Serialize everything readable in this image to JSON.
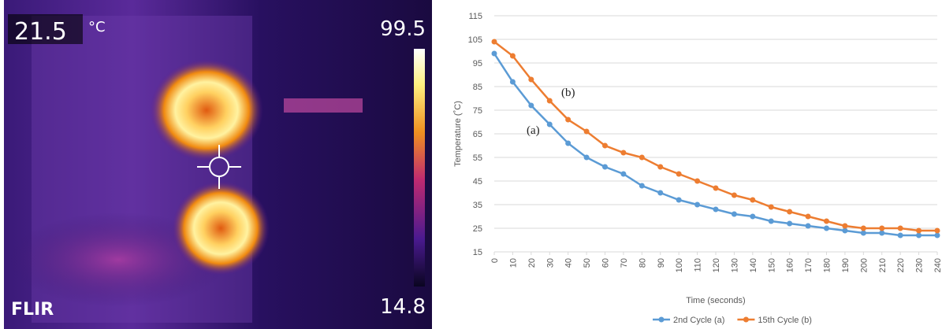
{
  "thermal_image": {
    "temperature": "21.5",
    "unit": "°C",
    "max_label": "99.5",
    "min_label": "14.8",
    "brand": "FLIR"
  },
  "chart_data": {
    "type": "line",
    "x_label": "Time (seconds)",
    "y_label": "Temperature (˚C)",
    "x": [
      0,
      10,
      20,
      30,
      40,
      50,
      60,
      70,
      80,
      90,
      100,
      110,
      120,
      130,
      140,
      150,
      160,
      170,
      180,
      190,
      200,
      210,
      220,
      230,
      240
    ],
    "xlim": [
      0,
      240
    ],
    "xticks": [
      0,
      10,
      20,
      30,
      40,
      50,
      60,
      70,
      80,
      90,
      100,
      110,
      120,
      130,
      140,
      150,
      160,
      170,
      180,
      190,
      200,
      210,
      220,
      230,
      240
    ],
    "ylim": [
      15,
      115
    ],
    "yticks": [
      15,
      25,
      35,
      45,
      55,
      65,
      75,
      85,
      95,
      105,
      115
    ],
    "grid": true,
    "annotations": [
      "(a)",
      "(b)"
    ],
    "series": [
      {
        "name": "2nd Cycle (a)",
        "color": "#5b9bd5",
        "values": [
          99,
          87,
          77,
          69,
          61,
          55,
          51,
          48,
          43,
          40,
          37,
          35,
          33,
          31,
          30,
          28,
          27,
          26,
          25,
          24,
          23,
          23,
          22,
          22,
          22
        ]
      },
      {
        "name": "15th Cycle (b)",
        "color": "#ed7d31",
        "values": [
          104,
          98,
          88,
          79,
          71,
          66,
          60,
          57,
          55,
          51,
          48,
          45,
          42,
          39,
          37,
          34,
          32,
          30,
          28,
          26,
          25,
          25,
          25,
          24,
          24
        ]
      }
    ]
  }
}
